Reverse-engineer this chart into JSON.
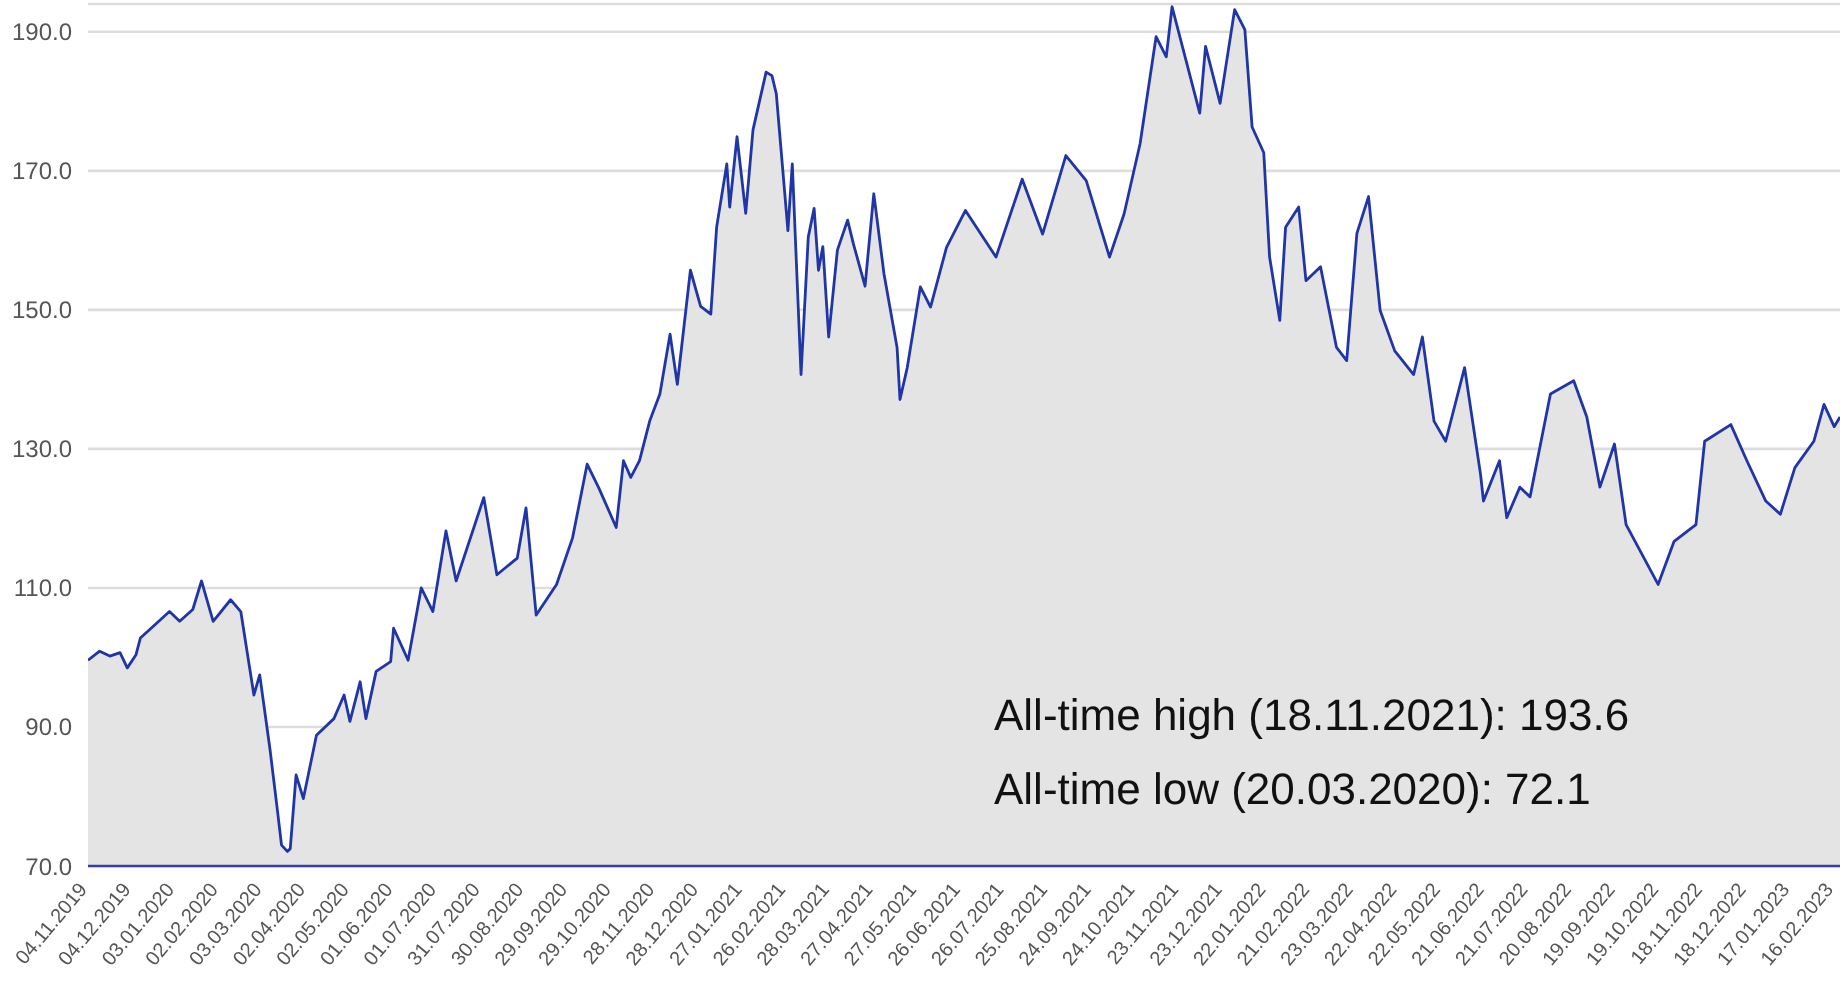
{
  "chart_data": {
    "type": "area",
    "x": [
      "2019-11-04",
      "2019-11-12",
      "2019-11-19",
      "2019-11-26",
      "2019-12-01",
      "2019-12-07",
      "2019-12-10",
      "2019-12-30",
      "2020-01-06",
      "2020-01-15",
      "2020-01-21",
      "2020-01-29",
      "2020-02-10",
      "2020-02-17",
      "2020-02-26",
      "2020-03-01",
      "2020-03-08",
      "2020-03-13",
      "2020-03-16",
      "2020-03-20",
      "2020-03-22",
      "2020-03-26",
      "2020-03-31",
      "2020-04-09",
      "2020-04-21",
      "2020-04-28",
      "2020-05-02",
      "2020-05-09",
      "2020-05-13",
      "2020-05-20",
      "2020-05-30",
      "2020-06-01",
      "2020-06-11",
      "2020-06-20",
      "2020-06-28",
      "2020-07-07",
      "2020-07-14",
      "2020-08-02",
      "2020-08-11",
      "2020-08-25",
      "2020-08-31",
      "2020-09-07",
      "2020-09-21",
      "2020-10-02",
      "2020-10-12",
      "2020-10-20",
      "2020-11-01",
      "2020-11-06",
      "2020-11-11",
      "2020-11-17",
      "2020-11-24",
      "2020-12-01",
      "2020-12-08",
      "2020-12-13",
      "2020-12-22",
      "2020-12-29",
      "2021-01-05",
      "2021-01-09",
      "2021-01-16",
      "2021-01-18",
      "2021-01-23",
      "2021-01-29",
      "2021-02-03",
      "2021-02-12",
      "2021-02-16",
      "2021-02-19",
      "2021-02-27",
      "2021-03-02",
      "2021-03-08",
      "2021-03-13",
      "2021-03-17",
      "2021-03-20",
      "2021-03-23",
      "2021-03-27",
      "2021-04-02",
      "2021-04-09",
      "2021-04-13",
      "2021-04-21",
      "2021-04-27",
      "2021-05-04",
      "2021-05-13",
      "2021-05-15",
      "2021-05-20",
      "2021-05-29",
      "2021-06-05",
      "2021-06-16",
      "2021-06-29",
      "2021-07-20",
      "2021-08-07",
      "2021-08-21",
      "2021-09-06",
      "2021-09-20",
      "2021-10-06",
      "2021-10-16",
      "2021-10-27",
      "2021-11-07",
      "2021-11-14",
      "2021-11-18",
      "2021-12-07",
      "2021-12-11",
      "2021-12-21",
      "2021-12-31",
      "2022-01-07",
      "2022-01-12",
      "2022-01-20",
      "2022-01-24",
      "2022-01-31",
      "2022-02-04",
      "2022-02-13",
      "2022-02-18",
      "2022-02-28",
      "2022-03-11",
      "2022-03-18",
      "2022-03-25",
      "2022-04-02",
      "2022-04-10",
      "2022-04-20",
      "2022-05-03",
      "2022-05-09",
      "2022-05-17",
      "2022-05-25",
      "2022-06-07",
      "2022-06-18",
      "2022-06-20",
      "2022-07-01",
      "2022-07-06",
      "2022-07-15",
      "2022-07-22",
      "2022-08-05",
      "2022-08-21",
      "2022-08-30",
      "2022-09-08",
      "2022-09-18",
      "2022-09-26",
      "2022-10-18",
      "2022-10-29",
      "2022-11-13",
      "2022-11-19",
      "2022-12-07",
      "2022-12-18",
      "2022-12-31",
      "2023-01-10",
      "2023-01-20",
      "2023-02-02",
      "2023-02-09",
      "2023-02-16",
      "2023-02-20"
    ],
    "series": [
      {
        "color": "#2036a6",
        "values": [
          99.6,
          100.9,
          100.2,
          100.7,
          98.5,
          100.4,
          102.8,
          106.6,
          105.2,
          106.9,
          111.0,
          105.2,
          108.3,
          106.6,
          94.6,
          97.5,
          86.9,
          78.3,
          73.0,
          72.1,
          72.5,
          83.1,
          79.7,
          88.8,
          91.2,
          94.6,
          90.8,
          96.5,
          91.2,
          98.0,
          99.4,
          104.2,
          99.6,
          110.0,
          106.6,
          118.2,
          111.0,
          123.0,
          111.9,
          114.3,
          121.5,
          106.1,
          110.5,
          117.2,
          127.8,
          124.4,
          118.7,
          128.3,
          125.9,
          128.3,
          134.0,
          137.9,
          146.5,
          139.3,
          155.7,
          150.5,
          149.4,
          161.9,
          171.0,
          164.8,
          174.9,
          163.9,
          175.9,
          184.2,
          183.7,
          181.1,
          161.4,
          171.0,
          140.7,
          160.5,
          164.6,
          155.7,
          159.1,
          146.1,
          158.6,
          162.9,
          159.5,
          153.4,
          166.7,
          155.2,
          144.6,
          137.1,
          141.7,
          153.3,
          150.4,
          159.0,
          164.3,
          157.6,
          168.8,
          160.9,
          172.2,
          168.6,
          157.6,
          163.8,
          173.9,
          189.3,
          186.4,
          193.6,
          178.3,
          187.9,
          179.7,
          193.2,
          190.3,
          176.3,
          172.6,
          157.6,
          148.5,
          161.9,
          164.8,
          154.2,
          156.2,
          144.6,
          142.7,
          161.0,
          166.3,
          149.9,
          144.1,
          140.7,
          146.1,
          134.0,
          131.1,
          141.7,
          126.3,
          122.5,
          128.3,
          120.1,
          124.5,
          123.1,
          137.9,
          139.8,
          134.6,
          124.5,
          130.7,
          119.1,
          110.5,
          116.7,
          119.1,
          131.1,
          133.5,
          128.3,
          122.5,
          120.6,
          127.3,
          131.1,
          136.4,
          133.2,
          134.6
        ]
      }
    ],
    "xlim": [
      "2019-11-04",
      "2023-02-20"
    ],
    "xticks": [
      {
        "value": "2019-11-04",
        "label": "04.11.2019"
      },
      {
        "value": "2019-12-04",
        "label": "04.12.2019"
      },
      {
        "value": "2020-01-03",
        "label": "03.01.2020"
      },
      {
        "value": "2020-02-02",
        "label": "02.02.2020"
      },
      {
        "value": "2020-03-03",
        "label": "03.03.2020"
      },
      {
        "value": "2020-04-02",
        "label": "02.04.2020"
      },
      {
        "value": "2020-05-02",
        "label": "02.05.2020"
      },
      {
        "value": "2020-06-01",
        "label": "01.06.2020"
      },
      {
        "value": "2020-07-01",
        "label": "01.07.2020"
      },
      {
        "value": "2020-07-31",
        "label": "31.07.2020"
      },
      {
        "value": "2020-08-30",
        "label": "30.08.2020"
      },
      {
        "value": "2020-09-29",
        "label": "29.09.2020"
      },
      {
        "value": "2020-10-29",
        "label": "29.10.2020"
      },
      {
        "value": "2020-11-28",
        "label": "28.11.2020"
      },
      {
        "value": "2020-12-28",
        "label": "28.12.2020"
      },
      {
        "value": "2021-01-27",
        "label": "27.01.2021"
      },
      {
        "value": "2021-02-26",
        "label": "26.02.2021"
      },
      {
        "value": "2021-03-28",
        "label": "28.03.2021"
      },
      {
        "value": "2021-04-27",
        "label": "27.04.2021"
      },
      {
        "value": "2021-05-27",
        "label": "27.05.2021"
      },
      {
        "value": "2021-06-26",
        "label": "26.06.2021"
      },
      {
        "value": "2021-07-26",
        "label": "26.07.2021"
      },
      {
        "value": "2021-08-25",
        "label": "25.08.2021"
      },
      {
        "value": "2021-09-24",
        "label": "24.09.2021"
      },
      {
        "value": "2021-10-24",
        "label": "24.10.2021"
      },
      {
        "value": "2021-11-23",
        "label": "23.11.2021"
      },
      {
        "value": "2021-12-23",
        "label": "23.12.2021"
      },
      {
        "value": "2022-01-22",
        "label": "22.01.2022"
      },
      {
        "value": "2022-02-21",
        "label": "21.02.2022"
      },
      {
        "value": "2022-03-23",
        "label": "23.03.2022"
      },
      {
        "value": "2022-04-22",
        "label": "22.04.2022"
      },
      {
        "value": "2022-05-22",
        "label": "22.05.2022"
      },
      {
        "value": "2022-06-21",
        "label": "21.06.2022"
      },
      {
        "value": "2022-07-21",
        "label": "21.07.2022"
      },
      {
        "value": "2022-08-20",
        "label": "20.08.2022"
      },
      {
        "value": "2022-09-19",
        "label": "19.09.2022"
      },
      {
        "value": "2022-10-19",
        "label": "19.10.2022"
      },
      {
        "value": "2022-11-18",
        "label": "18.11.2022"
      },
      {
        "value": "2022-12-18",
        "label": "18.12.2022"
      },
      {
        "value": "2023-01-17",
        "label": "17.01.2023"
      },
      {
        "value": "2023-02-16",
        "label": "16.02.2023"
      }
    ],
    "ylim": [
      70,
      194
    ],
    "yticks": [
      {
        "value": 70,
        "label": "70.0"
      },
      {
        "value": 90,
        "label": "90.0"
      },
      {
        "value": 110,
        "label": "110.0"
      },
      {
        "value": 130,
        "label": "130.0"
      },
      {
        "value": 150,
        "label": "150.0"
      },
      {
        "value": 170,
        "label": "170.0"
      },
      {
        "value": 190,
        "label": "190.0"
      }
    ],
    "grid": "y",
    "annotations": [
      "All-time high (18.11.2021): 193.6",
      "All-time low (20.03.2020): 72.1"
    ]
  }
}
